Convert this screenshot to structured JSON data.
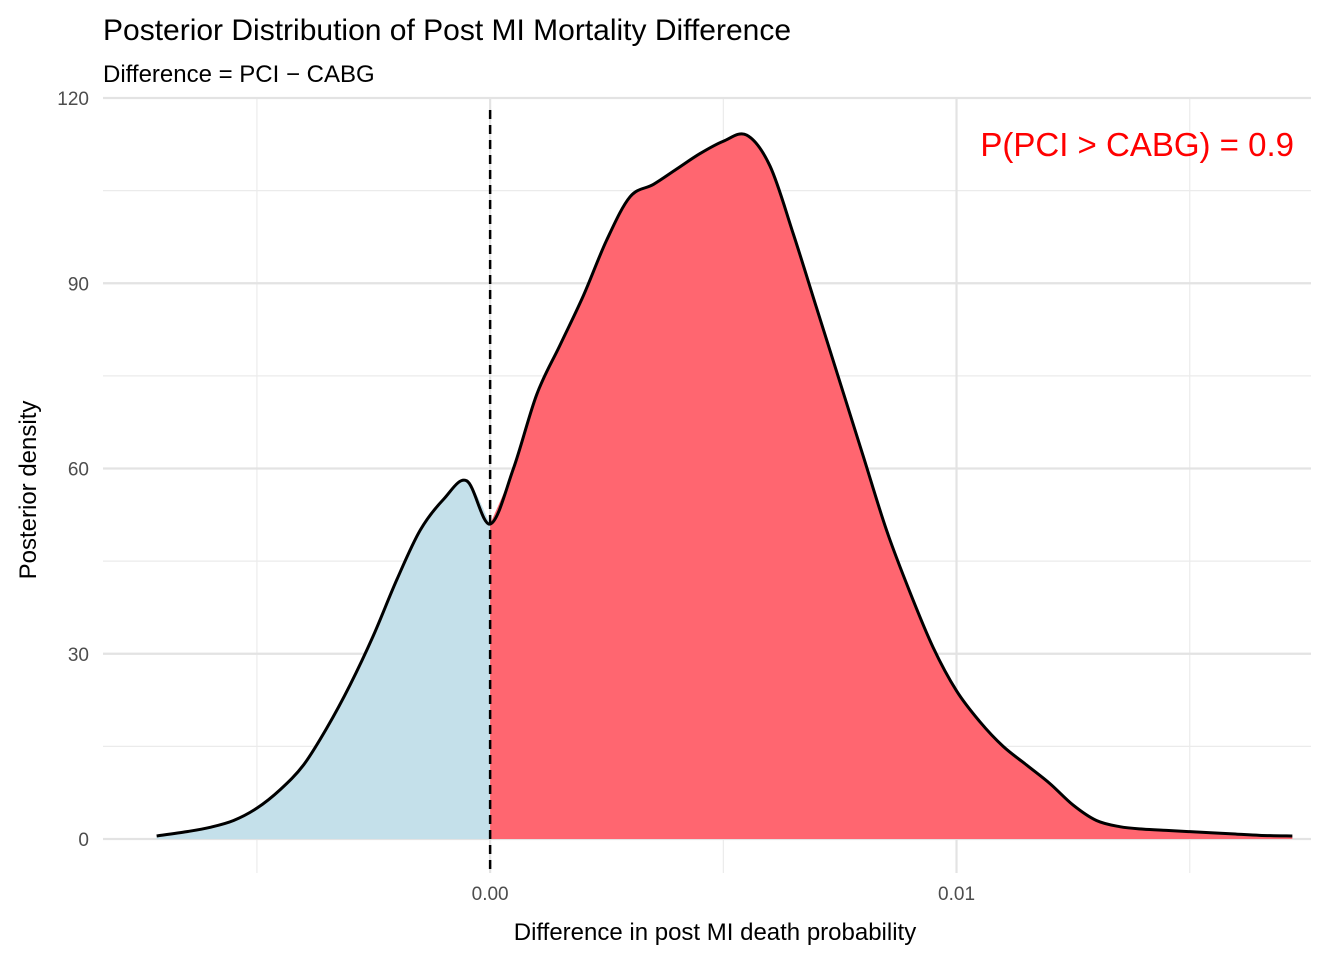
{
  "chart_data": {
    "type": "area",
    "title": "Posterior Distribution of Post MI Mortality Difference",
    "subtitle": "Difference = PCI − CABG",
    "xlabel": "Difference in post MI death probability",
    "ylabel": "Posterior density",
    "xlim": [
      -0.0083,
      0.0176
    ],
    "ylim": [
      -5.5,
      120
    ],
    "x_ticks": [
      0,
      0.01
    ],
    "x_tick_labels": [
      "0.00",
      "0.01"
    ],
    "y_ticks": [
      0,
      30,
      60,
      90,
      120
    ],
    "y_tick_labels": [
      "0",
      "30",
      "60",
      "90",
      "120"
    ],
    "grid": true,
    "reference_line": {
      "x": 0,
      "style": "dashed"
    },
    "annotation": {
      "text": "P(PCI > CABG) = 0.9",
      "position": "top-right",
      "color": "#ff0000"
    },
    "fill_colors": {
      "below_zero": "#c4e0ea",
      "above_zero": "#ff6670"
    },
    "line_color": "#000000",
    "series": [
      {
        "name": "posterior density",
        "x": [
          -0.00715,
          -0.0065,
          -0.006,
          -0.0055,
          -0.005,
          -0.0045,
          -0.004,
          -0.0035,
          -0.003,
          -0.0025,
          -0.002,
          -0.0015,
          -0.001,
          -0.0005,
          0.0,
          0.0005,
          0.001,
          0.0015,
          0.002,
          0.0025,
          0.003,
          0.0035,
          0.004,
          0.0045,
          0.005,
          0.0055,
          0.006,
          0.0065,
          0.007,
          0.0075,
          0.008,
          0.0085,
          0.009,
          0.0095,
          0.01,
          0.0105,
          0.011,
          0.0115,
          0.012,
          0.0125,
          0.013,
          0.0135,
          0.014,
          0.0145,
          0.015,
          0.0155,
          0.016,
          0.0165,
          0.0172
        ],
        "y": [
          0.5,
          1.2,
          1.9,
          3.0,
          5.0,
          8.0,
          12.0,
          18.0,
          25.0,
          33.0,
          42.0,
          50.0,
          55.0,
          58.0,
          51.0,
          60.0,
          72.0,
          80.0,
          88.0,
          97.0,
          104.0,
          106.0,
          108.5,
          111.0,
          113.0,
          114.0,
          109.0,
          98.0,
          86.0,
          74.0,
          62.0,
          50.0,
          40.0,
          31.0,
          24.0,
          19.0,
          15.0,
          12.0,
          9.0,
          5.5,
          3.0,
          2.0,
          1.6,
          1.4,
          1.2,
          1.0,
          0.8,
          0.6,
          0.5
        ]
      }
    ]
  }
}
